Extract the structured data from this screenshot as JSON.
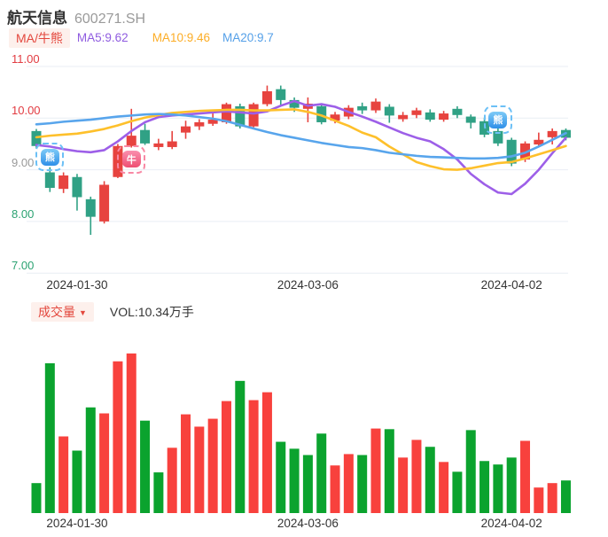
{
  "header": {
    "title": "航天信息",
    "code": "600271.SH"
  },
  "ma_legend": {
    "tag": "MA/牛熊",
    "items": [
      {
        "name": "MA5",
        "label": "MA5:9.62",
        "color": "#8f5ce0"
      },
      {
        "name": "MA10",
        "label": "MA10:9.46",
        "color": "#fcad26"
      },
      {
        "name": "MA20",
        "label": "MA20:9.7",
        "color": "#55a0e8"
      }
    ]
  },
  "volume_legend": {
    "tag": "成交量",
    "arrow": "▼",
    "vol": "VOL:10.34万手"
  },
  "colors": {
    "accent_red": "#e3473d",
    "chip_bg": "#fdf0ec",
    "grid": "#e9edf4",
    "candle_up": "#e7433f",
    "candle_down": "#30a185",
    "vol_up": "#f8413d",
    "vol_down": "#0ba32e",
    "ma5": "#9d5fe8",
    "ma10": "#fec02b",
    "ma20": "#58a5ec",
    "tick_above": "#e23b41",
    "tick_neutral": "#999999",
    "tick_below": "#2ba272",
    "bear_frame": "#6cc0f6",
    "bear_bg1": "#7ecbf7",
    "bear_bg2": "#2f8fe8",
    "bull_frame": "#f888a4",
    "bull_bg1": "#fa8fae",
    "bull_bg2": "#ee4e72"
  },
  "chart_data": [
    {
      "type": "candlestick",
      "title": "航天信息 600271.SH daily price",
      "ylim": [
        6.9,
        11.1
      ],
      "grid": true,
      "y_axis": {
        "ticks": [
          {
            "label": "11.00",
            "value": 11,
            "color": "#e23b41"
          },
          {
            "label": "10.00",
            "value": 10,
            "color": "#e23b41"
          },
          {
            "label": "9.00",
            "value": 9,
            "color": "#999999"
          },
          {
            "label": "8.00",
            "value": 8,
            "color": "#2ba272"
          },
          {
            "label": "7.00",
            "value": 7,
            "color": "#2ba272"
          }
        ]
      },
      "x_axis": {
        "labels": [
          {
            "text": "2024-01-30",
            "index": 3
          },
          {
            "text": "2024-03-06",
            "index": 20
          },
          {
            "text": "2024-04-02",
            "index": 35
          }
        ]
      },
      "candles_format": [
        "open",
        "close",
        "low",
        "high"
      ],
      "candles": [
        [
          9.75,
          9.46,
          9.41,
          9.79
        ],
        [
          8.95,
          8.65,
          8.57,
          9.05
        ],
        [
          8.63,
          8.89,
          8.55,
          8.95
        ],
        [
          8.86,
          8.47,
          8.21,
          8.92
        ],
        [
          8.43,
          8.09,
          7.74,
          8.48
        ],
        [
          8.0,
          8.71,
          7.96,
          8.78
        ],
        [
          8.86,
          9.46,
          8.84,
          9.5
        ],
        [
          9.46,
          9.66,
          9.43,
          10.18
        ],
        [
          9.77,
          9.51,
          9.48,
          9.89
        ],
        [
          9.44,
          9.51,
          9.38,
          9.6
        ],
        [
          9.44,
          9.55,
          9.4,
          9.75
        ],
        [
          9.72,
          9.84,
          9.6,
          9.95
        ],
        [
          9.84,
          9.92,
          9.77,
          9.98
        ],
        [
          9.89,
          9.97,
          9.85,
          10.09
        ],
        [
          9.92,
          10.27,
          9.89,
          10.3
        ],
        [
          10.23,
          9.84,
          9.8,
          10.28
        ],
        [
          9.84,
          10.27,
          9.82,
          10.3
        ],
        [
          10.27,
          10.52,
          10.23,
          10.63
        ],
        [
          10.56,
          10.35,
          10.25,
          10.63
        ],
        [
          10.35,
          10.2,
          10.12,
          10.4
        ],
        [
          10.18,
          10.28,
          9.92,
          10.4
        ],
        [
          10.23,
          9.92,
          9.88,
          10.28
        ],
        [
          9.95,
          10.07,
          9.9,
          10.12
        ],
        [
          10.03,
          10.2,
          9.98,
          10.25
        ],
        [
          10.23,
          10.15,
          10.08,
          10.3
        ],
        [
          10.15,
          10.32,
          10.1,
          10.38
        ],
        [
          10.22,
          10.05,
          9.91,
          10.27
        ],
        [
          9.98,
          10.06,
          9.93,
          10.12
        ],
        [
          10.06,
          10.15,
          10.0,
          10.2
        ],
        [
          10.11,
          9.97,
          9.93,
          10.17
        ],
        [
          9.97,
          10.09,
          9.93,
          10.14
        ],
        [
          10.18,
          10.06,
          10.0,
          10.23
        ],
        [
          10.03,
          9.91,
          9.8,
          10.07
        ],
        [
          9.94,
          9.68,
          9.63,
          10.01
        ],
        [
          9.75,
          9.51,
          9.46,
          9.8
        ],
        [
          9.58,
          9.12,
          9.07,
          9.62
        ],
        [
          9.2,
          9.51,
          9.15,
          9.55
        ],
        [
          9.49,
          9.58,
          9.45,
          9.72
        ],
        [
          9.63,
          9.75,
          9.49,
          9.8
        ],
        [
          9.77,
          9.62,
          9.57,
          9.8
        ]
      ],
      "series": [
        {
          "name": "MA5",
          "color": "#9d5fe8",
          "values": [
            9.48,
            9.45,
            9.4,
            9.36,
            9.34,
            9.38,
            9.55,
            9.75,
            9.92,
            10.02,
            10.05,
            10.07,
            10.09,
            10.11,
            10.13,
            10.11,
            10.09,
            10.13,
            10.24,
            10.33,
            10.24,
            10.27,
            10.22,
            10.12,
            10.03,
            9.93,
            9.82,
            9.71,
            9.62,
            9.55,
            9.4,
            9.2,
            8.92,
            8.72,
            8.56,
            8.53,
            8.73,
            9.0,
            9.32,
            9.62
          ]
        },
        {
          "name": "MA10",
          "color": "#fec02b",
          "values": [
            9.63,
            9.66,
            9.68,
            9.7,
            9.74,
            9.79,
            9.86,
            9.94,
            10.01,
            10.06,
            10.1,
            10.12,
            10.14,
            10.15,
            10.16,
            10.16,
            10.15,
            10.15,
            10.16,
            10.17,
            10.12,
            10.05,
            9.95,
            9.85,
            9.72,
            9.63,
            9.45,
            9.3,
            9.15,
            9.07,
            9.01,
            9.0,
            9.03,
            9.08,
            9.13,
            9.15,
            9.22,
            9.3,
            9.38,
            9.46
          ]
        },
        {
          "name": "MA20",
          "color": "#58a5ec",
          "values": [
            9.88,
            9.9,
            9.93,
            9.95,
            9.97,
            10.0,
            10.03,
            10.05,
            10.07,
            10.08,
            10.07,
            10.05,
            10.02,
            9.99,
            9.94,
            9.87,
            9.8,
            9.73,
            9.67,
            9.62,
            9.57,
            9.52,
            9.48,
            9.44,
            9.42,
            9.38,
            9.33,
            9.3,
            9.27,
            9.25,
            9.24,
            9.23,
            9.22,
            9.22,
            9.23,
            9.26,
            9.33,
            9.45,
            9.58,
            9.71
          ]
        }
      ],
      "markers": [
        {
          "kind": "bear",
          "label": "熊",
          "index": 1,
          "value": 9.25
        },
        {
          "kind": "bull",
          "label": "牛",
          "index": 7,
          "value": 9.2
        },
        {
          "kind": "bear",
          "label": "熊",
          "index": 34,
          "value": 9.97
        }
      ]
    },
    {
      "type": "bar",
      "title": "成交量 volume (万手)",
      "ylabel": "万手",
      "ylim": [
        0,
        52
      ],
      "values": [
        9.5,
        47.5,
        24.3,
        19.8,
        33.5,
        31.6,
        48.1,
        50.6,
        29.3,
        12.9,
        20.7,
        31.3,
        27.4,
        29.9,
        35.5,
        41.9,
        35.8,
        38.3,
        22.6,
        20.4,
        18.4,
        25.2,
        15.1,
        18.7,
        18.4,
        26.8,
        26.6,
        17.6,
        23.2,
        21.0,
        16.2,
        13.1,
        26.3,
        16.5,
        15.4,
        17.6,
        22.9,
        8.1,
        9.5,
        10.34
      ],
      "up_flags": [
        0,
        0,
        1,
        0,
        0,
        1,
        1,
        1,
        0,
        0,
        1,
        1,
        1,
        1,
        1,
        0,
        1,
        1,
        0,
        0,
        0,
        0,
        1,
        1,
        0,
        1,
        0,
        1,
        1,
        0,
        1,
        0,
        0,
        0,
        0,
        0,
        1,
        1,
        1,
        0
      ],
      "x_axis": {
        "labels": [
          {
            "text": "2024-01-30",
            "index": 3
          },
          {
            "text": "2024-03-06",
            "index": 20
          },
          {
            "text": "2024-04-02",
            "index": 35
          }
        ]
      }
    }
  ]
}
